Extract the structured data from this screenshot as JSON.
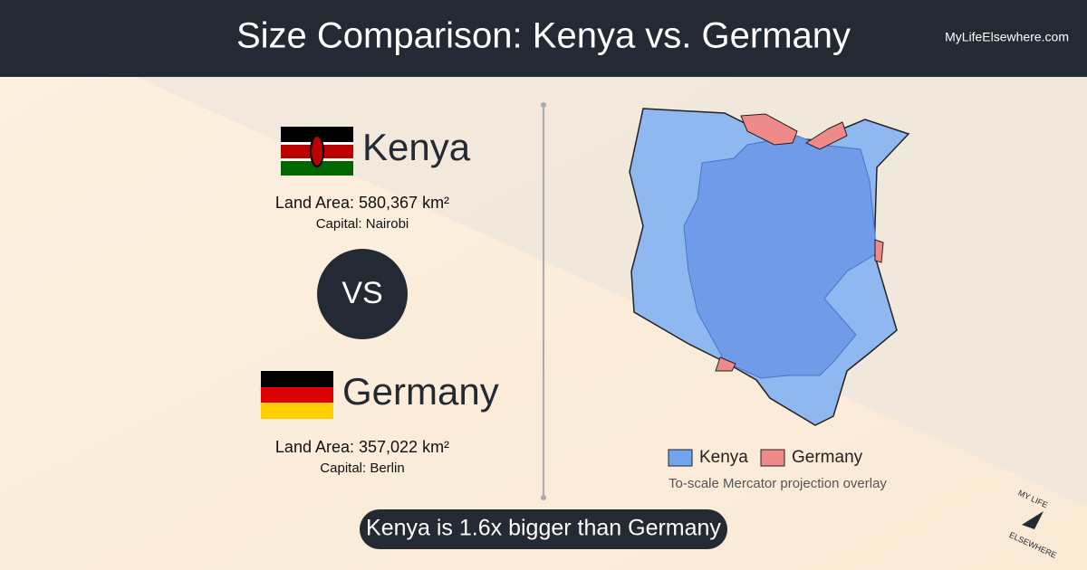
{
  "header": {
    "title": "Size Comparison: Kenya vs. Germany",
    "site": "MyLifeElsewhere.com"
  },
  "countries": [
    {
      "name": "Kenya",
      "land_area": "Land Area: 580,367 km²",
      "capital": "Capital: Nairobi"
    },
    {
      "name": "Germany",
      "land_area": "Land Area: 357,022 km²",
      "capital": "Capital: Berlin"
    }
  ],
  "vs": "VS",
  "legend": {
    "items": [
      "Kenya",
      "Germany"
    ],
    "note": "To-scale Mercator projection overlay"
  },
  "summary": "Kenya is 1.6x bigger than Germany",
  "logo": {
    "top": "MY LIFE",
    "bottom": "ELSEWHERE"
  }
}
